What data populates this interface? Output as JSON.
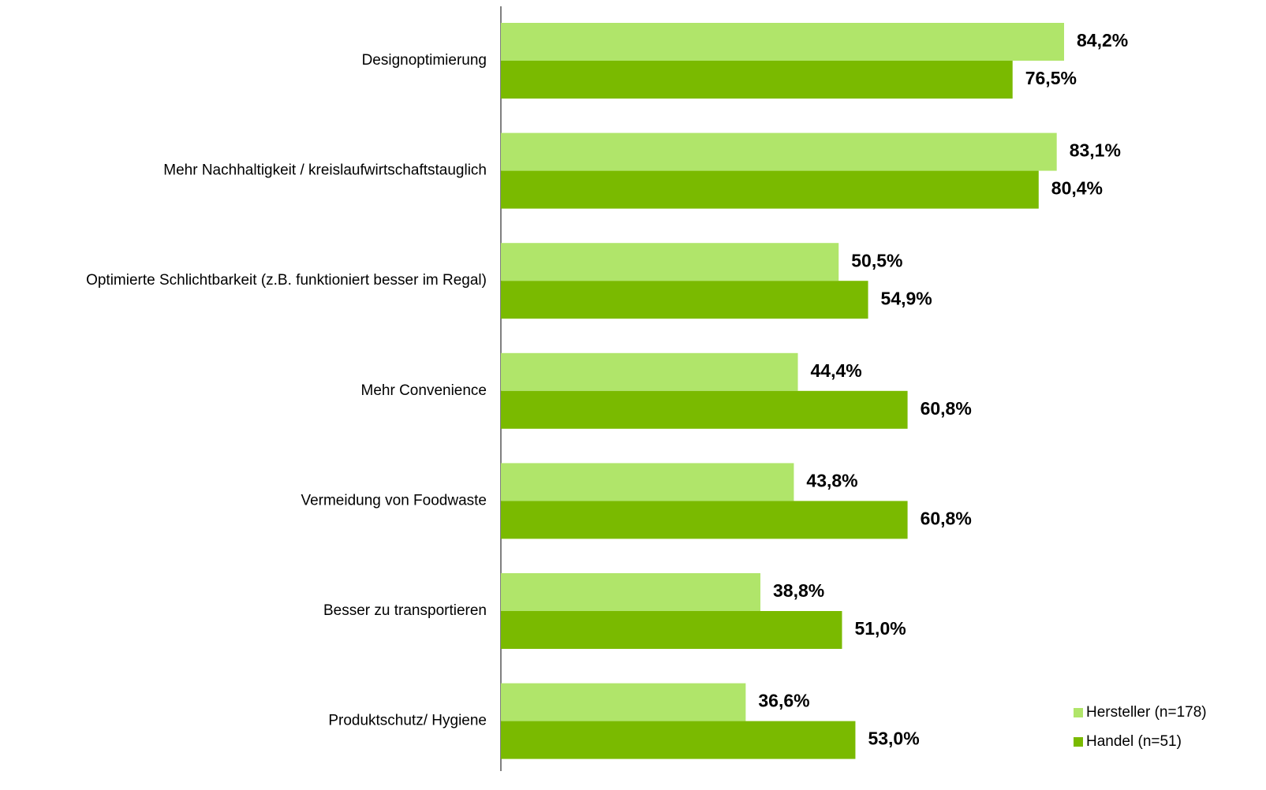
{
  "chart_data": {
    "type": "bar",
    "orientation": "horizontal",
    "categories": [
      "Designoptimierung",
      "Mehr Nachhaltigkeit / kreislaufwirtschaftstauglich",
      "Optimierte Schlichtbarkeit (z.B. funktioniert besser im Regal)",
      "Mehr Convenience",
      "Vermeidung von Foodwaste",
      "Besser zu transportieren",
      "Produktschutz/ Hygiene"
    ],
    "series": [
      {
        "name": "Hersteller (n=178)",
        "color": "#b0e56a",
        "values": [
          84.2,
          83.1,
          50.5,
          44.4,
          43.8,
          38.8,
          36.6
        ],
        "value_labels": [
          "84,2%",
          "83,1%",
          "50,5%",
          "44,4%",
          "43,8%",
          "38,8%",
          "36,6%"
        ]
      },
      {
        "name": "Handel (n=51)",
        "color": "#7aba00",
        "values": [
          76.5,
          80.4,
          54.9,
          60.8,
          60.8,
          51.0,
          53.0
        ],
        "value_labels": [
          "76,5%",
          "80,4%",
          "54,9%",
          "60,8%",
          "60,8%",
          "51,0%",
          "53,0%"
        ]
      }
    ],
    "xlim": [
      0,
      100
    ],
    "legend": "bottom-right"
  }
}
